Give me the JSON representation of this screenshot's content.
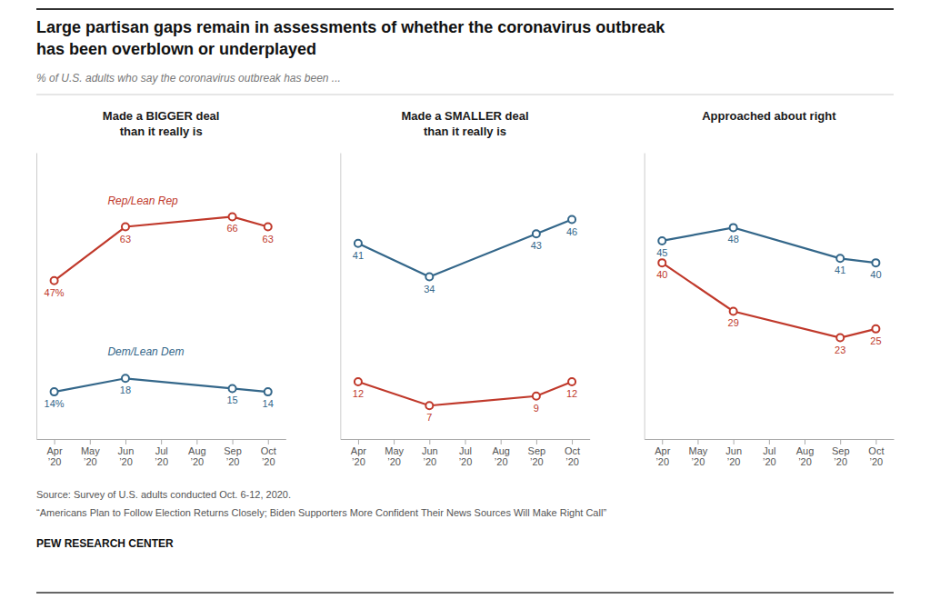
{
  "title": "Large partisan gaps remain in assessments of whether the coronavirus outbreak\nhas been overblown or underplayed",
  "subtitle": "% of U.S. adults who say the coronavirus outbreak has been ...",
  "annotations": [
    "Source: Survey of U.S. adults conducted Oct. 6-12, 2020.",
    "“Americans Plan to Follow Election Returns Closely; Biden Supporters More Confident Their News Sources Will Make Right Call”",
    "PEW RESEARCH CENTER"
  ],
  "chart_data": [
    {
      "type": "line",
      "title": "Made a BIGGER deal\nthan it really is",
      "categories": [
        "Apr\n’20",
        "May\n’20",
        "Jun\n’20",
        "Jul\n’20",
        "Aug\n’20",
        "Sep\n’20",
        "Oct\n’20"
      ],
      "series": [
        {
          "name": "Rep/Lean Rep",
          "color": "#c0392b",
          "values": [
            47,
            null,
            63,
            null,
            null,
            66,
            63
          ],
          "value_labels": [
            "47%",
            null,
            "63",
            null,
            null,
            "66",
            "63"
          ]
        },
        {
          "name": "Dem/Lean Dem",
          "color": "#34678a",
          "values": [
            14,
            null,
            18,
            null,
            null,
            15,
            14
          ],
          "value_labels": [
            "14%",
            null,
            "18",
            null,
            null,
            "15",
            "14"
          ]
        }
      ],
      "ylim": [
        0,
        85
      ],
      "yticks": [],
      "data_labels": true,
      "marker": "circle",
      "grid": false,
      "tick_labels": "x"
    },
    {
      "type": "line",
      "title": "Made a SMALLER deal\nthan it really is",
      "categories": [
        "Apr\n’20",
        "May\n’20",
        "Jun\n’20",
        "Jul\n’20",
        "Aug\n’20",
        "Sep\n’20",
        "Oct\n’20"
      ],
      "series": [
        {
          "color": "#c0392b",
          "values": [
            12,
            null,
            7,
            null,
            null,
            9,
            12
          ]
        },
        {
          "color": "#34678a",
          "values": [
            41,
            null,
            34,
            null,
            null,
            43,
            46
          ]
        }
      ],
      "ylim": [
        0,
        60
      ],
      "yticks": [],
      "data_labels": true,
      "marker": "circle",
      "grid": false,
      "tick_labels": "x"
    },
    {
      "type": "line",
      "title": "Approached about right",
      "categories": [
        "Apr\n’20",
        "May\n’20",
        "Jun\n’20",
        "Jul\n’20",
        "Aug\n’20",
        "Sep\n’20",
        "Oct\n’20"
      ],
      "series": [
        {
          "color": "#c0392b",
          "values": [
            40,
            null,
            29,
            null,
            null,
            23,
            25
          ]
        },
        {
          "color": "#34678a",
          "values": [
            45,
            null,
            48,
            null,
            null,
            41,
            40
          ]
        }
      ],
      "ylim": [
        0,
        65
      ],
      "yticks": [],
      "data_labels": true,
      "marker": "circle",
      "grid": false,
      "tick_labels": "x"
    }
  ]
}
